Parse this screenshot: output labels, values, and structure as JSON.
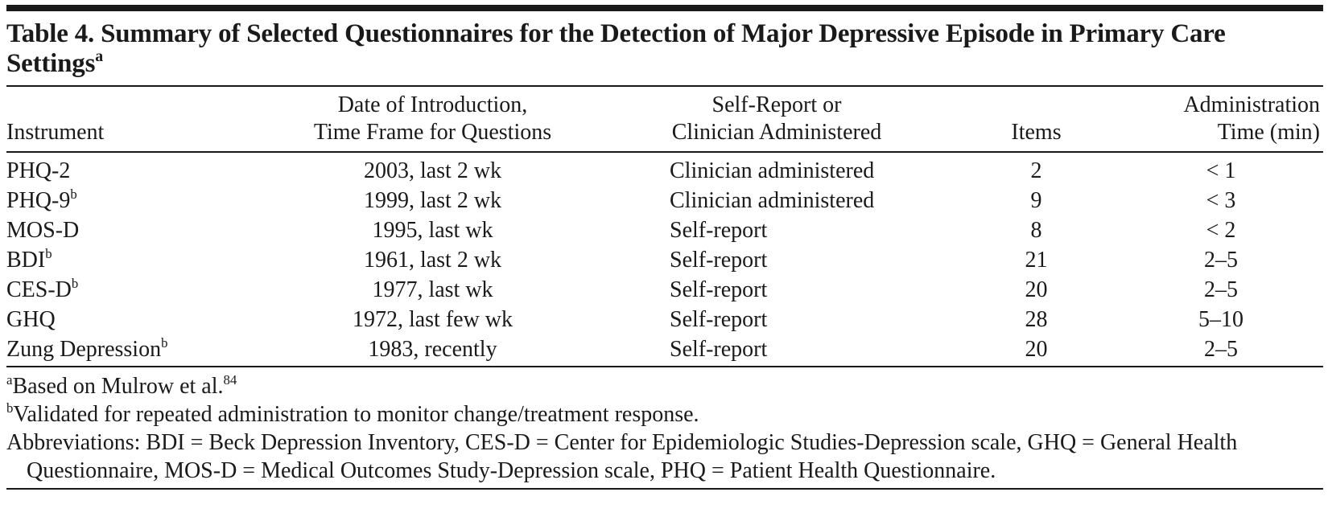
{
  "title": {
    "text": "Table 4. Summary of Selected Questionnaires for the Detection of Major Depressive Episode in Primary Care Settings",
    "sup": "a"
  },
  "table": {
    "header": [
      [
        "Instrument"
      ],
      [
        "Date of Introduction,",
        "Time Frame for Questions"
      ],
      [
        "Self-Report or",
        "Clinician Administered"
      ],
      [
        "Items"
      ],
      [
        "Administration",
        "Time (min)"
      ]
    ],
    "rows": [
      [
        {
          "text": "PHQ-2"
        },
        "2003, last 2 wk",
        "Clinician administered",
        2,
        "< 1"
      ],
      [
        {
          "text": "PHQ-9",
          "sup": "b"
        },
        "1999, last 2 wk",
        "Clinician administered",
        9,
        "< 3"
      ],
      [
        {
          "text": "MOS-D"
        },
        "1995, last wk",
        "Self-report",
        8,
        "< 2"
      ],
      [
        {
          "text": "BDI",
          "sup": "b"
        },
        "1961, last 2 wk",
        "Self-report",
        21,
        "2–5"
      ],
      [
        {
          "text": "CES-D",
          "sup": "b"
        },
        "1977, last wk",
        "Self-report",
        20,
        "2–5"
      ],
      [
        {
          "text": "GHQ"
        },
        "1972, last few wk",
        "Self-report",
        28,
        "5–10"
      ],
      [
        {
          "text": "Zung Depression",
          "sup": "b"
        },
        "1983, recently",
        "Self-report",
        20,
        "2–5"
      ]
    ]
  },
  "footnotes": [
    {
      "mark": "a",
      "text": "Based on Mulrow et al.",
      "sup": "84"
    },
    {
      "mark": "b",
      "text": "Validated for repeated administration to monitor change/treatment response."
    }
  ],
  "abbreviations": "Abbreviations: BDI = Beck Depression Inventory, CES-D = Center for Epidemiologic Studies-Depression scale, GHQ = General Health Questionnaire, MOS-D = Medical Outcomes Study-Depression scale, PHQ = Patient Health Questionnaire."
}
